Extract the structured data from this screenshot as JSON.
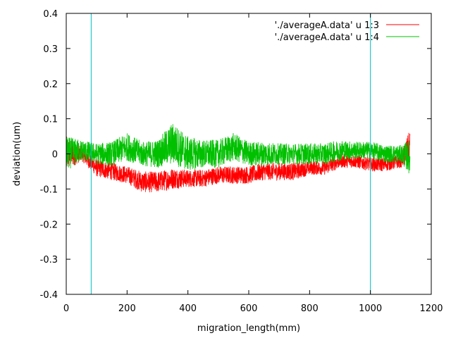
{
  "chart_data": {
    "type": "line",
    "title": "",
    "xlabel": "migration_length(mm)",
    "ylabel": "deviation(um)",
    "xlim": [
      0,
      1200
    ],
    "ylim": [
      -0.4,
      0.4
    ],
    "xticks": [
      0,
      200,
      400,
      600,
      800,
      1000,
      1200
    ],
    "yticks": [
      -0.4,
      -0.3,
      -0.2,
      -0.1,
      0,
      0.1,
      0.2,
      0.3,
      0.4
    ],
    "xtick_labels": [
      "0",
      "200",
      "400",
      "600",
      "800",
      "1000",
      "1200"
    ],
    "ytick_labels": [
      "-0.4",
      "-0.3",
      "-0.2",
      "-0.1",
      "0",
      "0.1",
      "0.2",
      "0.3",
      "0.4"
    ],
    "grid": false,
    "legend_position": "top-right",
    "series": [
      {
        "name": "'./averageA.data' u 1:3",
        "color": "#ff0000",
        "x": [
          0,
          50,
          100,
          150,
          200,
          250,
          300,
          350,
          400,
          450,
          500,
          550,
          600,
          650,
          700,
          750,
          800,
          850,
          900,
          950,
          1000,
          1050,
          1100,
          1130
        ],
        "y": [
          0.0,
          0.0,
          -0.04,
          -0.05,
          -0.06,
          -0.08,
          -0.08,
          -0.07,
          -0.07,
          -0.07,
          -0.06,
          -0.06,
          -0.06,
          -0.05,
          -0.05,
          -0.05,
          -0.04,
          -0.04,
          -0.02,
          -0.02,
          -0.03,
          -0.03,
          -0.02,
          0.02
        ],
        "spread": [
          0.05,
          0.02,
          0.025,
          0.025,
          0.025,
          0.03,
          0.03,
          0.03,
          0.025,
          0.025,
          0.025,
          0.025,
          0.025,
          0.025,
          0.025,
          0.025,
          0.02,
          0.02,
          0.02,
          0.02,
          0.02,
          0.02,
          0.02,
          0.05
        ]
      },
      {
        "name": "'./averageA.data' u 1:4",
        "color": "#00c000",
        "x": [
          0,
          50,
          100,
          150,
          200,
          250,
          300,
          350,
          400,
          450,
          500,
          550,
          600,
          650,
          700,
          750,
          800,
          850,
          900,
          950,
          1000,
          1050,
          1100,
          1130
        ],
        "y": [
          0.0,
          0.01,
          0.0,
          0.0,
          0.02,
          0.0,
          0.0,
          0.03,
          0.0,
          0.0,
          0.0,
          0.02,
          0.0,
          0.0,
          0.0,
          0.0,
          0.0,
          0.0,
          0.01,
          0.01,
          0.01,
          0.0,
          0.0,
          -0.01
        ],
        "spread": [
          0.05,
          0.03,
          0.03,
          0.035,
          0.04,
          0.035,
          0.04,
          0.06,
          0.05,
          0.04,
          0.04,
          0.04,
          0.035,
          0.035,
          0.03,
          0.03,
          0.03,
          0.03,
          0.03,
          0.025,
          0.025,
          0.025,
          0.025,
          0.05
        ]
      }
    ],
    "vertical_lines": [
      {
        "x": 82,
        "color": "#00c0c0"
      },
      {
        "x": 1000,
        "color": "#00c0c0"
      }
    ]
  }
}
